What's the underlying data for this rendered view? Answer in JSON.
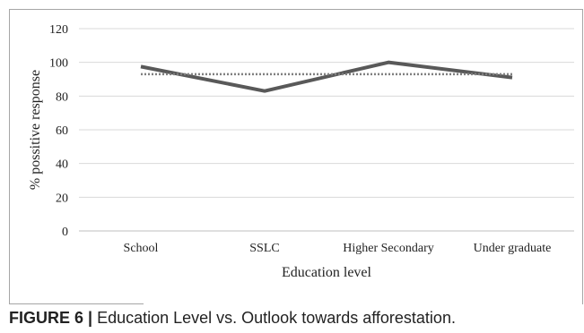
{
  "caption": {
    "label": "FIGURE 6 |",
    "text": " Education Level vs. Outlook towards afforestation."
  },
  "chart_data": {
    "type": "line",
    "categories": [
      "School",
      "SSLC",
      "Higher Secondary",
      "Under graduate"
    ],
    "series": [
      {
        "values": [
          97.5,
          83,
          100,
          91
        ],
        "color": "#595959",
        "style": "solid"
      },
      {
        "values": [
          93,
          93,
          93,
          93
        ],
        "color": "#808080",
        "style": "dotted"
      }
    ],
    "xlabel": "Education level",
    "ylabel": "% possitive response",
    "ylim": [
      0,
      120
    ],
    "yticks": [
      0,
      20,
      40,
      60,
      80,
      100,
      120
    ],
    "grid": true,
    "legend": "none"
  }
}
